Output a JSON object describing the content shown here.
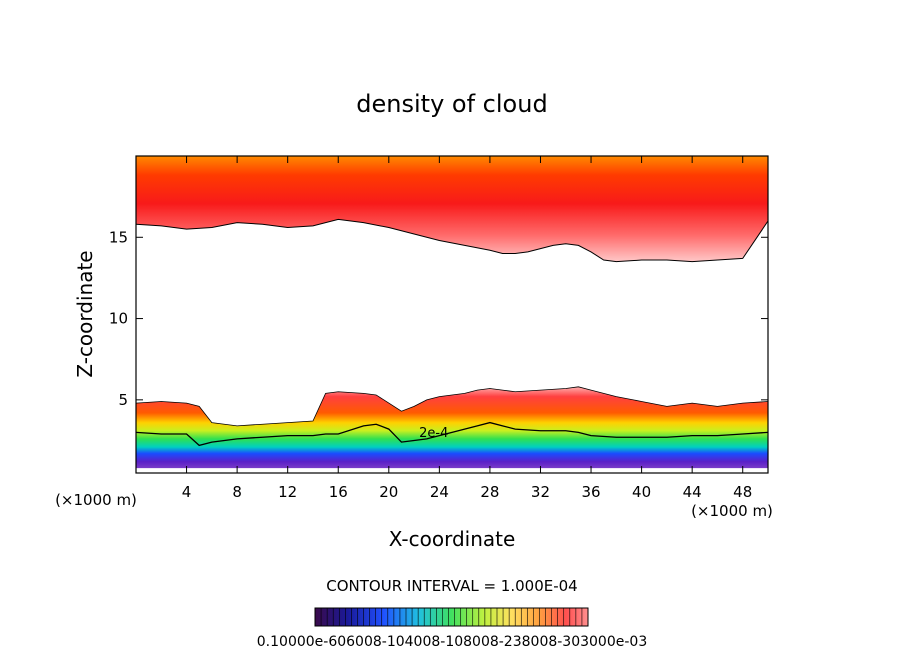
{
  "chart_data": {
    "type": "heatmap",
    "title": "density of cloud",
    "xlabel": "X-coordinate",
    "ylabel": "Z-coordinate",
    "x_unit_label": "(×1000 m)",
    "x_unit_label_right": "(×1000 m)",
    "x_ticks": [
      4,
      8,
      12,
      16,
      20,
      24,
      28,
      32,
      36,
      40,
      44,
      48
    ],
    "y_ticks": [
      5,
      10,
      15
    ],
    "xlim": [
      0,
      50
    ],
    "ylim": [
      0.5,
      20
    ],
    "contour_interval_text": "CONTOUR INTERVAL = 1.000E-04",
    "contour_label": "2e-4",
    "colorbar_min": 0.0001,
    "colorbar_max": 0.001,
    "colorbar_text": "0.10000e-606008-104008-108008-238008-303000e-03",
    "upper_layer": {
      "base_z": [
        15.8,
        15.7,
        15.5,
        15.6,
        15.9,
        15.8,
        15.6,
        15.7,
        16.1,
        15.9,
        15.6,
        15.2,
        14.8,
        14.5,
        14.2,
        14.0,
        14.0,
        14.1,
        14.3,
        14.5,
        14.6,
        14.5,
        14.1,
        13.6,
        13.5,
        13.6,
        13.6,
        13.5,
        13.6,
        13.7,
        16.0
      ],
      "x": [
        0,
        2,
        4,
        6,
        8,
        10,
        12,
        14,
        16,
        18,
        20,
        22,
        24,
        26,
        28,
        29,
        30,
        31,
        32,
        33,
        34,
        35,
        36,
        37,
        38,
        40,
        42,
        44,
        46,
        48,
        50
      ],
      "top_z": 20
    },
    "lower_layer": {
      "x": [
        0,
        2,
        4,
        5,
        6,
        8,
        10,
        12,
        14,
        15,
        16,
        18,
        19,
        20,
        21,
        22,
        23,
        24,
        25,
        26,
        27,
        28,
        29,
        30,
        32,
        34,
        35,
        36,
        38,
        40,
        42,
        44,
        46,
        48,
        50
      ],
      "top_z": [
        4.8,
        4.9,
        4.8,
        4.6,
        3.6,
        3.4,
        3.5,
        3.6,
        3.7,
        5.4,
        5.5,
        5.4,
        5.3,
        4.8,
        4.3,
        4.6,
        5.0,
        5.2,
        5.3,
        5.4,
        5.6,
        5.7,
        5.6,
        5.5,
        5.6,
        5.7,
        5.8,
        5.6,
        5.2,
        4.9,
        4.6,
        4.8,
        4.6,
        4.8,
        4.9
      ],
      "contour_2e4_z": [
        3.0,
        2.9,
        2.9,
        2.2,
        2.4,
        2.6,
        2.7,
        2.8,
        2.8,
        2.9,
        2.9,
        3.4,
        3.5,
        3.2,
        2.4,
        2.5,
        2.6,
        2.8,
        3.0,
        3.2,
        3.4,
        3.6,
        3.4,
        3.2,
        3.1,
        3.1,
        3.0,
        2.8,
        2.7,
        2.7,
        2.7,
        2.8,
        2.8,
        2.9,
        3.0
      ],
      "base_z": 0.8
    }
  }
}
